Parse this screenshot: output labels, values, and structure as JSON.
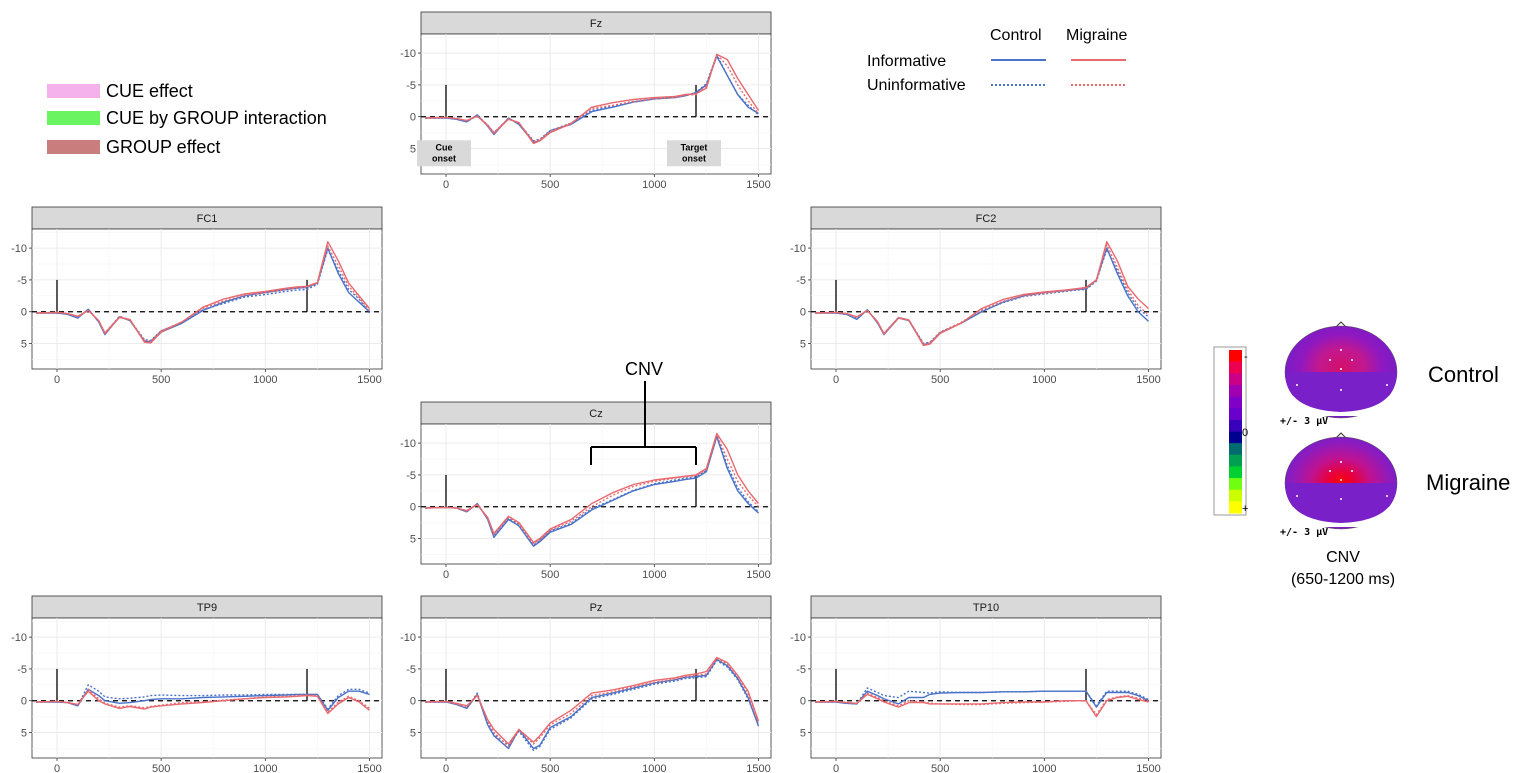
{
  "legend_effects": [
    {
      "label": "CUE effect",
      "color": "#f5b1ec"
    },
    {
      "label": "CUE by GROUP interaction",
      "color": "#6af560"
    },
    {
      "label": "GROUP effect",
      "color": "#c97e7d"
    }
  ],
  "legend_lines": {
    "groups": [
      "Control",
      "Migraine"
    ],
    "conditions": [
      "Informative",
      "Uninformative"
    ],
    "colors": {
      "Control": "#4a72c8",
      "Migraine": "#e8696e"
    }
  },
  "annotations": {
    "cue_onset": [
      "Cue",
      "onset"
    ],
    "target_onset": [
      "Target",
      "onset"
    ],
    "cnv_label": "CNV"
  },
  "topomap": {
    "groups": [
      "Control",
      "Migraine"
    ],
    "scale_label": "+/- 3 µV",
    "colorbar_labels": {
      "top": "-",
      "middle": "0",
      "bottom": "+"
    },
    "caption": [
      "CNV",
      "(650-1200 ms)"
    ],
    "colorbar_colors": [
      "#ff0000",
      "#ee0050",
      "#cc0088",
      "#a000b0",
      "#8000c8",
      "#6a00cc",
      "#3800b8",
      "#000090",
      "#006c70",
      "#00a050",
      "#00d030",
      "#70ff10",
      "#ccff00",
      "#ffff00"
    ]
  },
  "chart_data": {
    "type": "line",
    "x_unit": "ms",
    "xlim": [
      -120,
      1560
    ],
    "xticks": [
      0,
      500,
      1000,
      1500
    ],
    "ylim": [
      -13,
      9
    ],
    "y_reversed": true,
    "yticks": [
      -10,
      -5,
      0,
      5
    ],
    "cue_onset_ms": 0,
    "target_onset_ms": 1200,
    "cnv_window_ms": [
      650,
      1200
    ],
    "series_styles": [
      {
        "group": "Control",
        "condition": "Informative",
        "color": "#4a72c8",
        "dash": "solid"
      },
      {
        "group": "Control",
        "condition": "Uninformative",
        "color": "#4a72c8",
        "dash": "dotted"
      },
      {
        "group": "Migraine",
        "condition": "Informative",
        "color": "#e8696e",
        "dash": "solid"
      },
      {
        "group": "Migraine",
        "condition": "Uninformative",
        "color": "#e8696e",
        "dash": "dotted"
      }
    ],
    "x": [
      -100,
      0,
      50,
      100,
      150,
      200,
      230,
      300,
      350,
      420,
      450,
      500,
      600,
      700,
      800,
      900,
      1000,
      1100,
      1150,
      1200,
      1250,
      1300,
      1350,
      1400,
      1450,
      1500
    ],
    "panels": [
      {
        "name": "Fz",
        "series": [
          [
            0.2,
            0.2,
            0.4,
            0.8,
            -0.3,
            1.5,
            2.8,
            0.2,
            1.2,
            4.0,
            3.8,
            2.2,
            1.2,
            -0.8,
            -1.5,
            -2.3,
            -2.8,
            -3.0,
            -3.3,
            -3.8,
            -5.0,
            -9.5,
            -6.5,
            -3.5,
            -1.5,
            -0.5
          ],
          [
            0.2,
            0.2,
            0.3,
            0.8,
            -0.2,
            1.3,
            2.5,
            0.3,
            1.0,
            3.8,
            3.5,
            2.2,
            1.0,
            -1.0,
            -1.7,
            -2.4,
            -2.8,
            -3.0,
            -3.3,
            -3.8,
            -5.2,
            -9.7,
            -6.5,
            -3.5,
            -1.8,
            -0.3
          ],
          [
            0.2,
            0.1,
            0.3,
            0.6,
            -0.1,
            1.4,
            2.6,
            0.4,
            0.9,
            4.2,
            3.8,
            2.5,
            1.1,
            -1.5,
            -2.2,
            -2.7,
            -3.0,
            -3.2,
            -3.5,
            -3.6,
            -4.5,
            -9.8,
            -9.0,
            -6.0,
            -3.5,
            -1.0
          ],
          [
            0.2,
            0.1,
            0.3,
            0.6,
            -0.1,
            1.3,
            2.5,
            0.3,
            1.0,
            3.9,
            3.6,
            2.3,
            1.0,
            -1.3,
            -1.8,
            -2.4,
            -2.8,
            -3.0,
            -3.4,
            -3.5,
            -4.8,
            -9.8,
            -8.0,
            -5.0,
            -2.5,
            -0.5
          ]
        ]
      },
      {
        "name": "FC1",
        "series": [
          [
            0.2,
            0.2,
            0.4,
            1.0,
            -0.4,
            1.6,
            3.6,
            0.8,
            1.4,
            4.6,
            4.8,
            3.2,
            1.8,
            -0.2,
            -1.5,
            -2.5,
            -3.0,
            -3.5,
            -3.7,
            -3.8,
            -4.5,
            -10.0,
            -6.0,
            -3.0,
            -1.5,
            0.0
          ],
          [
            0.2,
            0.2,
            0.3,
            0.9,
            -0.3,
            1.5,
            3.4,
            0.7,
            1.3,
            4.4,
            4.5,
            3.0,
            1.7,
            -0.3,
            -1.3,
            -2.3,
            -2.7,
            -3.2,
            -3.4,
            -3.5,
            -4.3,
            -9.8,
            -6.5,
            -3.5,
            -2.0,
            0.2
          ],
          [
            0.2,
            0.1,
            0.3,
            0.7,
            -0.2,
            1.4,
            3.4,
            0.9,
            1.2,
            4.8,
            4.9,
            3.2,
            1.6,
            -0.7,
            -2.0,
            -2.8,
            -3.2,
            -3.7,
            -3.9,
            -4.0,
            -4.6,
            -11.0,
            -8.0,
            -4.5,
            -2.5,
            -0.5
          ],
          [
            0.2,
            0.1,
            0.3,
            0.8,
            -0.2,
            1.4,
            3.3,
            0.8,
            1.3,
            4.5,
            4.6,
            3.0,
            1.6,
            -0.5,
            -1.7,
            -2.6,
            -3.0,
            -3.5,
            -3.7,
            -3.9,
            -4.5,
            -10.3,
            -7.2,
            -4.0,
            -2.2,
            -0.2
          ]
        ]
      },
      {
        "name": "FC2",
        "series": [
          [
            0.2,
            0.2,
            0.4,
            1.2,
            -0.3,
            1.8,
            3.6,
            1.0,
            1.4,
            5.2,
            5.0,
            3.3,
            1.8,
            0.0,
            -1.5,
            -2.5,
            -3.0,
            -3.3,
            -3.5,
            -3.6,
            -5.0,
            -10.0,
            -6.0,
            -2.5,
            0.0,
            1.5
          ],
          [
            0.2,
            0.2,
            0.4,
            1.1,
            -0.3,
            1.7,
            3.4,
            0.9,
            1.3,
            5.0,
            4.8,
            3.2,
            1.8,
            -0.1,
            -1.4,
            -2.4,
            -2.8,
            -3.2,
            -3.4,
            -3.5,
            -4.8,
            -9.8,
            -6.5,
            -3.0,
            -0.5,
            0.8
          ],
          [
            0.2,
            0.1,
            0.3,
            0.8,
            -0.2,
            1.6,
            3.5,
            1.0,
            1.3,
            5.3,
            5.1,
            3.4,
            1.8,
            -0.5,
            -1.9,
            -2.7,
            -3.1,
            -3.4,
            -3.6,
            -3.8,
            -5.0,
            -11.0,
            -8.0,
            -4.0,
            -2.0,
            -0.5
          ],
          [
            0.2,
            0.1,
            0.3,
            0.9,
            -0.2,
            1.6,
            3.4,
            0.9,
            1.3,
            5.1,
            4.9,
            3.2,
            1.7,
            -0.3,
            -1.6,
            -2.5,
            -2.9,
            -3.3,
            -3.5,
            -3.7,
            -4.9,
            -10.5,
            -7.0,
            -3.5,
            -1.0,
            0.5
          ]
        ]
      },
      {
        "name": "Cz",
        "series": [
          [
            0.2,
            0.1,
            0.2,
            0.8,
            -0.5,
            2.0,
            4.8,
            2.0,
            3.0,
            6.2,
            5.5,
            4.0,
            2.8,
            0.5,
            -1.0,
            -2.5,
            -3.5,
            -4.0,
            -4.3,
            -4.5,
            -5.5,
            -11.0,
            -6.0,
            -2.5,
            -0.5,
            1.0
          ],
          [
            0.2,
            0.1,
            0.2,
            0.7,
            -0.4,
            1.8,
            4.6,
            1.8,
            2.8,
            6.0,
            5.3,
            3.8,
            2.6,
            0.3,
            -1.1,
            -2.6,
            -3.6,
            -4.2,
            -4.5,
            -4.7,
            -5.7,
            -11.2,
            -6.5,
            -3.0,
            -0.8,
            0.8
          ],
          [
            0.2,
            0.1,
            0.2,
            0.6,
            -0.3,
            1.7,
            4.2,
            1.5,
            2.5,
            5.6,
            5.0,
            3.5,
            2.0,
            -0.5,
            -2.2,
            -3.5,
            -4.2,
            -4.6,
            -4.8,
            -5.0,
            -6.0,
            -11.5,
            -9.0,
            -5.0,
            -2.5,
            -0.5
          ],
          [
            0.2,
            0.1,
            0.2,
            0.7,
            -0.4,
            1.8,
            4.4,
            1.6,
            2.7,
            5.8,
            5.2,
            3.7,
            2.3,
            0.0,
            -1.8,
            -3.2,
            -4.0,
            -4.5,
            -4.7,
            -4.9,
            -5.8,
            -11.3,
            -7.5,
            -4.0,
            -1.8,
            0.0
          ]
        ]
      },
      {
        "name": "TP9",
        "series": [
          [
            0.2,
            0.2,
            0.3,
            0.8,
            -1.8,
            -0.8,
            0.0,
            0.4,
            0.3,
            0.0,
            -0.2,
            -0.3,
            -0.3,
            -0.5,
            -0.6,
            -0.7,
            -0.8,
            -0.9,
            -1.0,
            -1.0,
            -1.0,
            1.5,
            -0.5,
            -1.5,
            -1.5,
            -1.0
          ],
          [
            0.2,
            0.2,
            0.3,
            0.8,
            -2.5,
            -1.5,
            -0.6,
            -0.3,
            -0.4,
            -0.6,
            -0.8,
            -0.9,
            -0.8,
            -0.8,
            -0.9,
            -0.9,
            -1.0,
            -1.0,
            -1.0,
            -1.0,
            -1.0,
            1.3,
            -0.8,
            -1.8,
            -1.8,
            -1.2
          ],
          [
            0.2,
            0.1,
            0.3,
            0.6,
            -1.5,
            0.0,
            0.5,
            1.2,
            0.9,
            1.3,
            1.0,
            0.8,
            0.5,
            0.3,
            0.0,
            -0.3,
            -0.5,
            -0.6,
            -0.7,
            -0.8,
            -0.7,
            2.0,
            0.5,
            -0.5,
            0.2,
            1.5
          ],
          [
            0.2,
            0.1,
            0.3,
            0.6,
            -1.8,
            -0.3,
            0.4,
            1.0,
            0.8,
            1.1,
            0.9,
            0.7,
            0.3,
            0.2,
            -0.1,
            -0.3,
            -0.6,
            -0.7,
            -0.8,
            -0.9,
            -0.8,
            1.8,
            0.2,
            -0.7,
            0.0,
            1.2
          ]
        ]
      },
      {
        "name": "Pz",
        "series": [
          [
            0.2,
            0.2,
            0.6,
            1.2,
            -1.0,
            3.8,
            5.5,
            7.5,
            4.5,
            7.5,
            7.0,
            4.2,
            2.5,
            -0.5,
            -1.2,
            -2.0,
            -2.8,
            -3.3,
            -3.7,
            -3.8,
            -4.0,
            -6.5,
            -5.5,
            -3.5,
            -0.5,
            4.0
          ],
          [
            0.2,
            0.2,
            0.5,
            1.2,
            -1.2,
            3.5,
            5.3,
            7.0,
            4.8,
            7.8,
            7.2,
            4.5,
            2.7,
            -0.3,
            -1.0,
            -1.8,
            -2.6,
            -3.1,
            -3.5,
            -3.6,
            -3.8,
            -6.3,
            -5.3,
            -3.3,
            -0.3,
            3.8
          ],
          [
            0.2,
            0.1,
            0.4,
            0.8,
            -0.8,
            3.0,
            4.5,
            6.8,
            4.5,
            6.5,
            5.5,
            3.5,
            1.5,
            -1.2,
            -1.7,
            -2.4,
            -3.2,
            -3.6,
            -4.0,
            -4.2,
            -4.6,
            -6.8,
            -6.0,
            -4.0,
            -1.5,
            3.2
          ],
          [
            0.2,
            0.1,
            0.5,
            1.0,
            -1.0,
            3.2,
            5.0,
            7.2,
            4.6,
            6.8,
            5.8,
            3.8,
            2.0,
            -0.8,
            -1.4,
            -2.2,
            -2.9,
            -3.4,
            -3.8,
            -4.0,
            -4.2,
            -6.6,
            -5.8,
            -3.8,
            -1.0,
            3.5
          ]
        ]
      },
      {
        "name": "TP10",
        "series": [
          [
            0.2,
            0.2,
            0.4,
            0.5,
            -1.5,
            -0.8,
            -0.3,
            0.5,
            -0.5,
            -0.5,
            -1.0,
            -1.2,
            -1.3,
            -1.3,
            -1.4,
            -1.4,
            -1.5,
            -1.5,
            -1.5,
            -1.5,
            1.0,
            -1.3,
            -1.3,
            -1.3,
            -0.8,
            0.0
          ],
          [
            0.2,
            0.2,
            0.4,
            0.5,
            -2.0,
            -1.3,
            -0.8,
            -0.5,
            -1.5,
            -1.3,
            -1.2,
            -1.4,
            -1.3,
            -1.3,
            -1.4,
            -1.4,
            -1.5,
            -1.5,
            -1.5,
            -1.5,
            0.8,
            -1.5,
            -1.5,
            -1.5,
            -1.0,
            -0.2
          ],
          [
            0.2,
            0.1,
            0.3,
            0.4,
            -1.0,
            -0.3,
            0.2,
            1.0,
            0.3,
            0.3,
            0.5,
            0.5,
            0.5,
            0.5,
            0.3,
            0.2,
            0.2,
            0.0,
            0.0,
            0.0,
            2.5,
            0.0,
            -0.5,
            -0.7,
            -0.2,
            0.2
          ],
          [
            0.2,
            0.1,
            0.3,
            0.4,
            -1.2,
            -0.5,
            0.0,
            0.8,
            0.0,
            0.2,
            0.4,
            0.5,
            0.6,
            0.6,
            0.4,
            0.3,
            0.2,
            0.1,
            0.0,
            0.0,
            2.2,
            -0.2,
            -0.6,
            -0.8,
            -0.4,
            0.0
          ]
        ]
      }
    ]
  }
}
